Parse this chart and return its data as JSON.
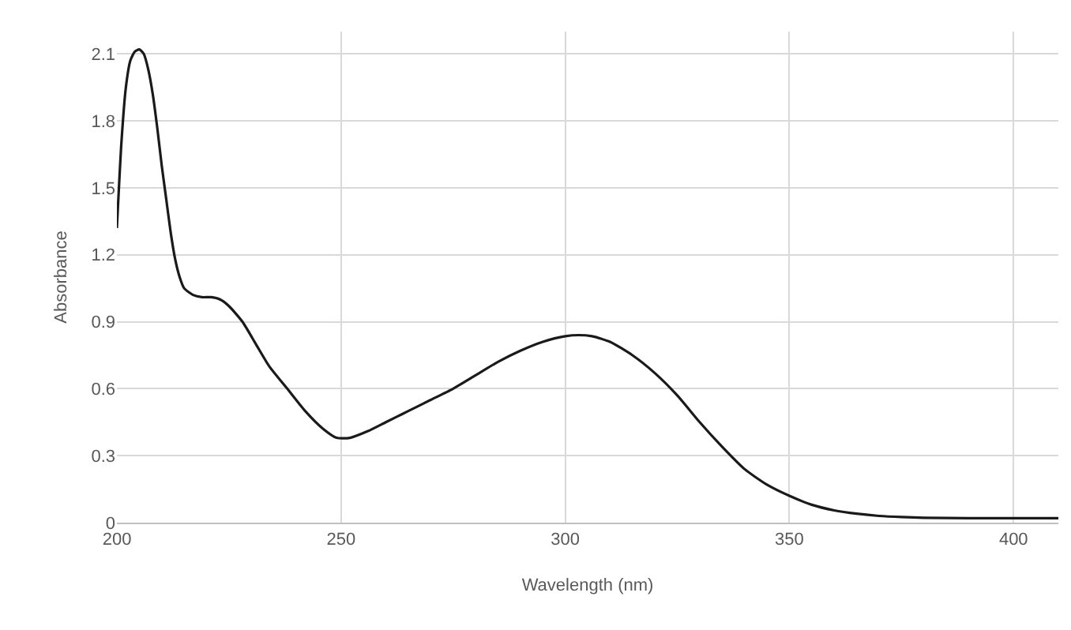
{
  "chart_data": {
    "type": "line",
    "xlabel": "Wavelength (nm)",
    "ylabel": "Absorbance",
    "x": [
      200,
      201,
      202,
      203,
      204,
      205,
      206,
      207,
      208,
      209,
      210,
      211,
      212,
      213,
      214,
      215,
      217,
      219,
      221,
      223,
      225,
      228,
      231,
      234,
      238,
      242,
      246,
      249,
      252,
      256,
      260,
      265,
      270,
      275,
      280,
      285,
      290,
      295,
      300,
      303,
      306,
      310,
      315,
      320,
      325,
      330,
      335,
      340,
      345,
      350,
      355,
      360,
      365,
      370,
      375,
      380,
      390,
      400,
      410
    ],
    "series": [
      {
        "color": "#1a1a1a",
        "values": [
          1.32,
          1.7,
          1.95,
          2.07,
          2.11,
          2.12,
          2.1,
          2.03,
          1.92,
          1.77,
          1.6,
          1.45,
          1.3,
          1.18,
          1.1,
          1.05,
          1.02,
          1.01,
          1.01,
          1.0,
          0.97,
          0.9,
          0.8,
          0.7,
          0.6,
          0.5,
          0.42,
          0.38,
          0.38,
          0.41,
          0.45,
          0.5,
          0.55,
          0.6,
          0.66,
          0.72,
          0.77,
          0.81,
          0.835,
          0.84,
          0.835,
          0.81,
          0.75,
          0.67,
          0.57,
          0.45,
          0.34,
          0.24,
          0.17,
          0.12,
          0.08,
          0.055,
          0.04,
          0.03,
          0.025,
          0.022,
          0.02,
          0.02,
          0.02
        ]
      }
    ],
    "xlim": [
      200,
      410
    ],
    "xticks": [
      200,
      250,
      300,
      350,
      400
    ],
    "ylim": [
      0,
      2.2
    ],
    "yticks": [
      0,
      0.3,
      0.6,
      0.9,
      1.2,
      1.5,
      1.8,
      2.1
    ],
    "grid": true,
    "marker": "none",
    "line_style": "solid"
  }
}
